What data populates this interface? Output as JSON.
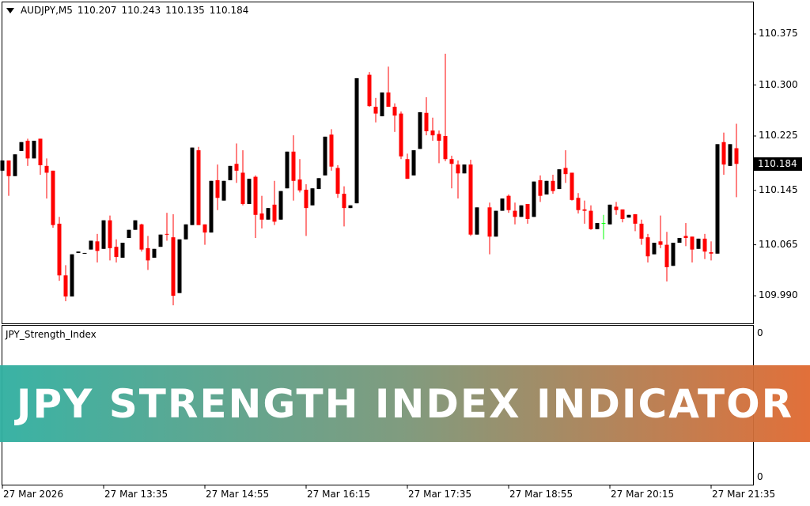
{
  "header": {
    "symbol": "AUDJPY,M5",
    "open": "110.207",
    "high": "110.243",
    "low": "110.135",
    "close": "110.184"
  },
  "indicator": {
    "name": "JPY_Strength_Index",
    "scale_top": "0",
    "scale_bottom": "0"
  },
  "banner": {
    "text": "JPY STRENGTH INDEX INDICATOR",
    "color_left": "#2fafa0",
    "color_right": "#e0682f"
  },
  "current_price": "110.184",
  "colors": {
    "bull": "#000000",
    "bear": "#ff0000",
    "doji": "#00ff00",
    "background": "#ffffff"
  },
  "chart_data": {
    "type": "candlestick",
    "symbol": "AUDJPY",
    "timeframe": "M5",
    "ylim": [
      109.955,
      110.41
    ],
    "y_ticks": [
      "110.375",
      "110.300",
      "110.225",
      "110.145",
      "110.065",
      "109.990"
    ],
    "x_ticks": [
      "27 Mar 2026",
      "27 Mar 13:35",
      "27 Mar 14:55",
      "27 Mar 16:15",
      "27 Mar 17:35",
      "27 Mar 18:55",
      "27 Mar 20:15",
      "27 Mar 21:35"
    ],
    "grid": false,
    "candles_ohlc": [
      [
        110.174,
        110.189,
        110.174,
        110.189
      ],
      [
        110.189,
        110.189,
        110.137,
        110.166
      ],
      [
        110.166,
        110.198,
        110.166,
        110.198
      ],
      [
        110.203,
        110.216,
        110.203,
        110.216
      ],
      [
        110.218,
        110.221,
        110.181,
        110.192
      ],
      [
        110.192,
        110.218,
        110.192,
        110.218
      ],
      [
        110.221,
        110.221,
        110.168,
        110.182
      ],
      [
        110.181,
        110.192,
        110.133,
        110.171
      ],
      [
        110.174,
        110.174,
        110.09,
        110.094
      ],
      [
        110.096,
        110.106,
        110.012,
        110.02
      ],
      [
        110.02,
        110.035,
        109.982,
        109.989
      ],
      [
        109.989,
        110.051,
        109.989,
        110.051
      ],
      [
        110.053,
        110.055,
        110.053,
        110.055
      ],
      [
        110.052,
        110.053,
        110.052,
        110.053
      ],
      [
        110.058,
        110.071,
        110.058,
        110.071
      ],
      [
        110.07,
        110.081,
        110.039,
        110.056
      ],
      [
        110.059,
        110.101,
        110.059,
        110.101
      ],
      [
        110.101,
        110.108,
        110.042,
        110.06
      ],
      [
        110.062,
        110.073,
        110.039,
        110.047
      ],
      [
        110.046,
        110.068,
        110.046,
        110.068
      ],
      [
        110.075,
        110.087,
        110.075,
        110.087
      ],
      [
        110.087,
        110.101,
        110.087,
        110.101
      ],
      [
        110.095,
        110.096,
        110.055,
        110.058
      ],
      [
        110.06,
        110.078,
        110.028,
        110.042
      ],
      [
        110.046,
        110.059,
        110.046,
        110.059
      ],
      [
        110.062,
        110.08,
        110.062,
        110.08
      ],
      [
        110.081,
        110.112,
        110.071,
        110.08
      ],
      [
        110.076,
        110.11,
        109.976,
        109.99
      ],
      [
        109.994,
        110.073,
        109.994,
        110.073
      ],
      [
        110.073,
        110.095,
        110.073,
        110.095
      ],
      [
        110.094,
        110.208,
        110.094,
        110.208
      ],
      [
        110.204,
        110.209,
        110.094,
        110.094
      ],
      [
        110.095,
        110.095,
        110.065,
        110.083
      ],
      [
        110.083,
        110.159,
        110.083,
        110.159
      ],
      [
        110.16,
        110.183,
        110.116,
        110.134
      ],
      [
        110.13,
        110.159,
        110.13,
        110.159
      ],
      [
        110.16,
        110.181,
        110.16,
        110.181
      ],
      [
        110.184,
        110.214,
        110.156,
        110.174
      ],
      [
        110.171,
        110.204,
        110.123,
        110.125
      ],
      [
        110.125,
        110.162,
        110.125,
        110.162
      ],
      [
        110.165,
        110.167,
        110.075,
        110.109
      ],
      [
        110.111,
        110.137,
        110.089,
        110.102
      ],
      [
        110.102,
        110.119,
        110.102,
        110.119
      ],
      [
        110.124,
        110.159,
        110.094,
        110.099
      ],
      [
        110.102,
        110.144,
        110.102,
        110.144
      ],
      [
        110.148,
        110.202,
        110.148,
        110.202
      ],
      [
        110.202,
        110.226,
        110.13,
        110.159
      ],
      [
        110.161,
        110.191,
        110.142,
        110.145
      ],
      [
        110.146,
        110.154,
        110.078,
        110.119
      ],
      [
        110.123,
        110.148,
        110.123,
        110.148
      ],
      [
        110.147,
        110.163,
        110.147,
        110.163
      ],
      [
        110.167,
        110.224,
        110.167,
        110.224
      ],
      [
        110.227,
        110.235,
        110.174,
        110.18
      ],
      [
        110.178,
        110.182,
        110.134,
        110.14
      ],
      [
        110.14,
        110.151,
        110.092,
        110.119
      ],
      [
        110.119,
        110.123,
        110.119,
        110.123
      ],
      [
        110.126,
        110.31,
        110.126,
        110.31
      ],
      null,
      [
        110.315,
        110.319,
        110.268,
        110.269
      ],
      [
        110.268,
        110.281,
        110.245,
        110.258
      ],
      [
        110.254,
        110.289,
        110.254,
        110.289
      ],
      [
        110.289,
        110.327,
        110.268,
        110.268
      ],
      [
        110.268,
        110.273,
        110.231,
        110.255
      ],
      [
        110.258,
        110.261,
        110.191,
        110.195
      ],
      [
        110.191,
        110.199,
        110.162,
        110.162
      ],
      [
        110.167,
        110.204,
        110.167,
        110.204
      ],
      [
        110.206,
        110.26,
        110.206,
        110.26
      ],
      [
        110.259,
        110.282,
        110.226,
        110.232
      ],
      [
        110.233,
        110.252,
        110.218,
        110.226
      ],
      [
        110.228,
        110.233,
        110.185,
        110.218
      ],
      [
        110.225,
        110.346,
        110.188,
        110.191
      ],
      [
        110.191,
        110.196,
        110.148,
        110.184
      ],
      [
        110.183,
        110.189,
        110.133,
        110.17
      ],
      [
        110.17,
        110.183,
        110.17,
        110.183
      ],
      [
        110.183,
        110.19,
        110.078,
        110.08
      ],
      [
        110.08,
        110.12,
        110.08,
        110.12
      ],
      null,
      [
        110.12,
        110.127,
        110.051,
        110.077
      ],
      [
        110.077,
        110.115,
        110.077,
        110.115
      ],
      [
        110.115,
        110.133,
        110.115,
        110.133
      ],
      [
        110.137,
        110.139,
        110.112,
        110.116
      ],
      [
        110.115,
        110.127,
        110.095,
        110.106
      ],
      [
        110.106,
        110.123,
        110.106,
        110.123
      ],
      [
        110.125,
        110.125,
        110.096,
        110.103
      ],
      [
        110.106,
        110.158,
        110.106,
        110.158
      ],
      [
        110.16,
        110.167,
        110.128,
        110.137
      ],
      [
        110.139,
        110.159,
        110.139,
        110.159
      ],
      [
        110.159,
        110.168,
        110.14,
        110.144
      ],
      [
        110.147,
        110.176,
        110.147,
        110.176
      ],
      [
        110.178,
        110.204,
        110.156,
        110.169
      ],
      [
        110.171,
        110.171,
        110.13,
        110.131
      ],
      [
        110.134,
        110.141,
        110.111,
        110.116
      ],
      [
        110.117,
        110.13,
        110.096,
        110.115
      ],
      [
        110.115,
        110.123,
        110.087,
        110.088
      ],
      [
        110.088,
        110.097,
        110.088,
        110.097
      ],
      [
        110.097,
        110.109,
        110.073,
        110.097
      ],
      [
        110.095,
        110.124,
        110.095,
        110.124
      ],
      [
        110.121,
        110.128,
        110.109,
        110.116
      ],
      [
        110.117,
        110.117,
        110.098,
        110.103
      ],
      [
        110.105,
        110.109,
        110.105,
        110.109
      ],
      [
        110.11,
        110.11,
        110.085,
        110.096
      ],
      [
        110.096,
        110.102,
        110.065,
        110.074
      ],
      [
        110.076,
        110.081,
        110.039,
        110.048
      ],
      [
        110.051,
        110.068,
        110.051,
        110.068
      ],
      [
        110.07,
        110.108,
        110.06,
        110.065
      ],
      [
        110.065,
        110.084,
        110.011,
        110.032
      ],
      [
        110.034,
        110.068,
        110.034,
        110.068
      ],
      [
        110.068,
        110.075,
        110.068,
        110.075
      ],
      [
        110.078,
        110.097,
        110.063,
        110.075
      ],
      [
        110.077,
        110.077,
        110.039,
        110.058
      ],
      [
        110.059,
        110.074,
        110.059,
        110.074
      ],
      [
        110.074,
        110.081,
        110.044,
        110.055
      ],
      [
        110.054,
        110.07,
        110.042,
        110.052
      ],
      [
        110.052,
        110.213,
        110.052,
        110.213
      ],
      [
        110.216,
        110.23,
        110.168,
        110.183
      ],
      [
        110.181,
        110.213,
        110.181,
        110.213
      ],
      [
        110.207,
        110.243,
        110.135,
        110.184
      ]
    ]
  }
}
